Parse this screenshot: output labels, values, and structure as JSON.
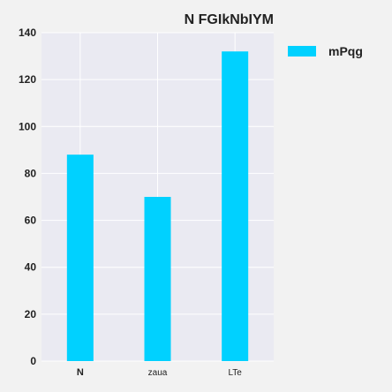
{
  "chart_data": {
    "type": "bar",
    "title": "N FGIkNbIYM",
    "xlabel": "",
    "ylabel": "",
    "categories": [
      "N",
      "zaua",
      "LTe"
    ],
    "series": [
      {
        "name": "mPqg",
        "values": [
          88,
          70,
          132
        ]
      }
    ],
    "ylim": [
      0,
      140
    ],
    "yticks": [
      0,
      20,
      40,
      60,
      80,
      100,
      120,
      140
    ],
    "grid": true,
    "legend_position": "right",
    "colors": {
      "bar": "#00d1ff",
      "plot_background": "#eaeaf2",
      "grid": "#ffffff",
      "page_background": "#f2f2f2",
      "text": "#222222"
    }
  }
}
